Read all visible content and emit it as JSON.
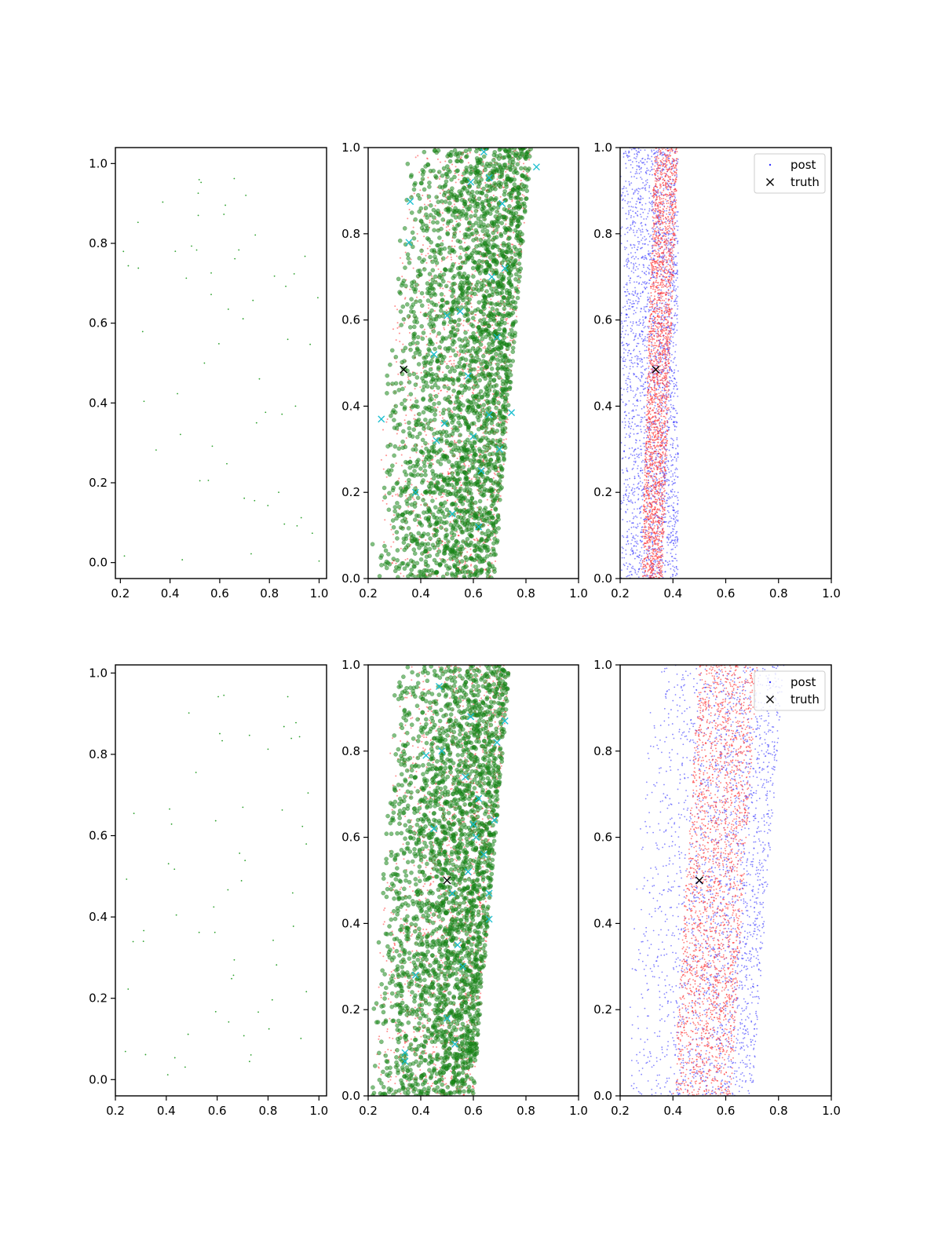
{
  "figure": {
    "colors": {
      "sample_green": "#2ca02c",
      "mcmc_green": "#1a8a1a",
      "posterior_red": "#ff3333",
      "posterior_blue": "#3333ff",
      "cyan_marker": "#17becf",
      "truth_black": "#000000"
    }
  },
  "chart_data": [
    {
      "id": "row1-left",
      "type": "scatter",
      "title": "",
      "xlabel": "",
      "ylabel": "",
      "xlim": [
        0.18,
        1.03
      ],
      "ylim": [
        -0.04,
        1.04
      ],
      "xticks": [
        "0.2",
        "0.4",
        "0.6",
        "0.8",
        "1.0"
      ],
      "yticks": [
        "0.0",
        "0.2",
        "0.4",
        "0.6",
        "0.8",
        "1.0"
      ],
      "grid": false,
      "legend": null,
      "series": [
        {
          "style": "tiny-green-dots",
          "approx_count": 60,
          "x_range": [
            0.2,
            1.0
          ],
          "y_range": [
            0.0,
            1.0
          ]
        }
      ]
    },
    {
      "id": "row1-middle",
      "type": "scatter",
      "title": "",
      "xlabel": "",
      "ylabel": "",
      "xlim": [
        0.2,
        1.0
      ],
      "ylim": [
        0.0,
        1.0
      ],
      "xticks": [
        "0.2",
        "0.4",
        "0.6",
        "0.8",
        "1.0"
      ],
      "yticks": [
        "0.0",
        "0.2",
        "0.4",
        "0.6",
        "0.8",
        "1.0"
      ],
      "grid": false,
      "legend": null,
      "truth": {
        "x": 0.335,
        "y": 0.485
      },
      "series": [
        {
          "style": "red-small-dots",
          "approx_count": 1500,
          "x_at_y0": [
            0.2,
            0.68
          ],
          "x_at_y1": [
            0.35,
            0.82
          ]
        },
        {
          "style": "green-circles",
          "approx_count": 2600,
          "x_at_y0": [
            0.2,
            0.68
          ],
          "x_at_y1": [
            0.35,
            0.82
          ]
        },
        {
          "style": "cyan-x",
          "points": [
            [
              0.25,
              0.37
            ],
            [
              0.36,
              0.875
            ],
            [
              0.355,
              0.78
            ],
            [
              0.45,
              0.52
            ],
            [
              0.49,
              0.36
            ],
            [
              0.52,
              0.15
            ],
            [
              0.58,
              0.47
            ],
            [
              0.6,
              0.33
            ],
            [
              0.64,
              0.99
            ],
            [
              0.66,
              0.93
            ],
            [
              0.67,
              0.7
            ],
            [
              0.69,
              0.56
            ],
            [
              0.71,
              0.87
            ],
            [
              0.72,
              0.72
            ],
            [
              0.745,
              0.385
            ],
            [
              0.84,
              0.955
            ],
            [
              0.46,
              0.32
            ],
            [
              0.62,
              0.12
            ],
            [
              0.55,
              0.62
            ],
            [
              0.63,
              0.25
            ],
            [
              0.59,
              0.92
            ],
            [
              0.7,
              0.3
            ],
            [
              0.38,
              0.2
            ],
            [
              0.5,
              0.61
            ],
            [
              0.66,
              0.38
            ]
          ]
        }
      ]
    },
    {
      "id": "row1-right",
      "type": "scatter",
      "title": "",
      "xlabel": "",
      "ylabel": "",
      "xlim": [
        0.2,
        1.0
      ],
      "ylim": [
        0.0,
        1.0
      ],
      "xticks": [
        "0.2",
        "0.4",
        "0.6",
        "0.8",
        "1.0"
      ],
      "yticks": [
        "0.0",
        "0.2",
        "0.4",
        "0.6",
        "0.8",
        "1.0"
      ],
      "grid": false,
      "legend": {
        "placement": "upper right",
        "entries": [
          "post",
          "truth"
        ]
      },
      "truth": {
        "x": 0.335,
        "y": 0.485
      },
      "series": [
        {
          "name": "post",
          "style": "blue-dots",
          "approx_count": 2400,
          "x_range": [
            0.2,
            0.42
          ]
        },
        {
          "style": "red-dots",
          "approx_count": 2400,
          "x_at_y0": [
            0.28,
            0.36
          ],
          "x_at_y1": [
            0.33,
            0.42
          ]
        }
      ]
    },
    {
      "id": "row2-left",
      "type": "scatter",
      "title": "",
      "xlabel": "",
      "ylabel": "",
      "xlim": [
        0.2,
        1.03
      ],
      "ylim": [
        -0.04,
        1.02
      ],
      "xticks": [
        "0.2",
        "0.4",
        "0.6",
        "0.8",
        "1.0"
      ],
      "yticks": [
        "0.0",
        "0.2",
        "0.4",
        "0.6",
        "0.8",
        "1.0"
      ],
      "grid": false,
      "legend": null,
      "series": [
        {
          "style": "tiny-green-dots",
          "approx_count": 60,
          "x_range": [
            0.22,
            1.0
          ],
          "y_range": [
            0.0,
            1.0
          ]
        }
      ]
    },
    {
      "id": "row2-middle",
      "type": "scatter",
      "title": "",
      "xlabel": "",
      "ylabel": "",
      "xlim": [
        0.2,
        1.0
      ],
      "ylim": [
        0.0,
        1.0
      ],
      "xticks": [
        "0.2",
        "0.4",
        "0.6",
        "0.8",
        "1.0"
      ],
      "yticks": [
        "0.0",
        "0.2",
        "0.4",
        "0.6",
        "0.8",
        "1.0"
      ],
      "grid": false,
      "legend": null,
      "truth": {
        "x": 0.5,
        "y": 0.5
      },
      "series": [
        {
          "style": "red-small-dots",
          "approx_count": 1500,
          "x_at_y0": [
            0.2,
            0.6
          ],
          "x_at_y1": [
            0.3,
            0.74
          ]
        },
        {
          "style": "green-circles",
          "approx_count": 2600,
          "x_at_y0": [
            0.2,
            0.6
          ],
          "x_at_y1": [
            0.3,
            0.74
          ]
        },
        {
          "style": "cyan-x",
          "points": [
            [
              0.34,
              0.1
            ],
            [
              0.34,
              0.08
            ],
            [
              0.38,
              0.28
            ],
            [
              0.42,
              0.79
            ],
            [
              0.47,
              0.95
            ],
            [
              0.48,
              0.8
            ],
            [
              0.52,
              0.47
            ],
            [
              0.54,
              0.35
            ],
            [
              0.58,
              0.52
            ],
            [
              0.6,
              0.63
            ],
            [
              0.62,
              0.69
            ],
            [
              0.64,
              0.56
            ],
            [
              0.66,
              0.41
            ],
            [
              0.66,
              0.47
            ],
            [
              0.69,
              0.82
            ],
            [
              0.72,
              0.87
            ],
            [
              0.5,
              0.18
            ],
            [
              0.56,
              0.3
            ],
            [
              0.61,
              0.6
            ],
            [
              0.57,
              0.74
            ],
            [
              0.68,
              0.64
            ],
            [
              0.53,
              0.12
            ],
            [
              0.59,
              0.88
            ],
            [
              0.45,
              0.62
            ]
          ]
        }
      ]
    },
    {
      "id": "row2-right",
      "type": "scatter",
      "title": "",
      "xlabel": "",
      "ylabel": "",
      "xlim": [
        0.2,
        1.0
      ],
      "ylim": [
        0.0,
        1.0
      ],
      "xticks": [
        "0.2",
        "0.4",
        "0.6",
        "0.8",
        "1.0"
      ],
      "yticks": [
        "0.0",
        "0.2",
        "0.4",
        "0.6",
        "0.8",
        "1.0"
      ],
      "grid": false,
      "legend": {
        "placement": "upper right",
        "entries": [
          "post",
          "truth"
        ]
      },
      "truth": {
        "x": 0.5,
        "y": 0.5
      },
      "series": [
        {
          "name": "post",
          "style": "blue-dots",
          "approx_count": 2300,
          "x_at_y0": [
            0.2,
            0.7
          ],
          "x_at_y1": [
            0.3,
            0.82
          ]
        },
        {
          "style": "red-dots",
          "approx_count": 2300,
          "x_at_y0": [
            0.4,
            0.62
          ],
          "x_at_y1": [
            0.5,
            0.72
          ]
        }
      ]
    }
  ]
}
